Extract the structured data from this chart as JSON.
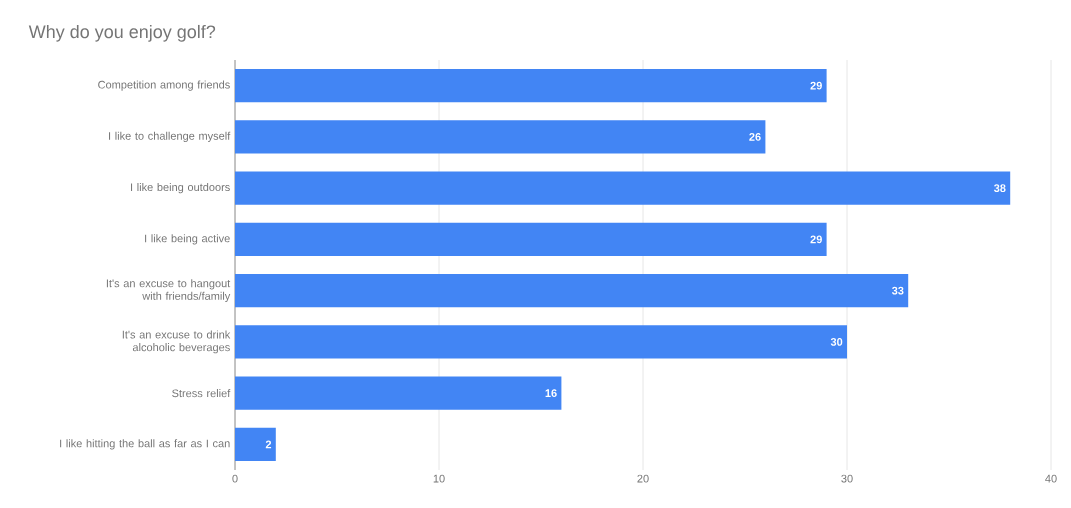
{
  "chart_data": {
    "type": "bar",
    "orientation": "horizontal",
    "title": "Why do you enjoy golf?",
    "categories": [
      "Competition among friends",
      "I like to challenge myself",
      "I like being outdoors",
      "I like being active",
      "It's an excuse to hangout with friends/family",
      "It's an excuse to drink alcoholic beverages",
      "Stress relief",
      "I like hitting the ball as far as I can"
    ],
    "values": [
      29,
      26,
      38,
      29,
      33,
      30,
      16,
      2
    ],
    "color": "#4285f4",
    "xlim": [
      0,
      40
    ],
    "xticks": [
      0,
      10,
      20,
      30,
      40
    ],
    "grid": "x",
    "data_labels": true
  }
}
